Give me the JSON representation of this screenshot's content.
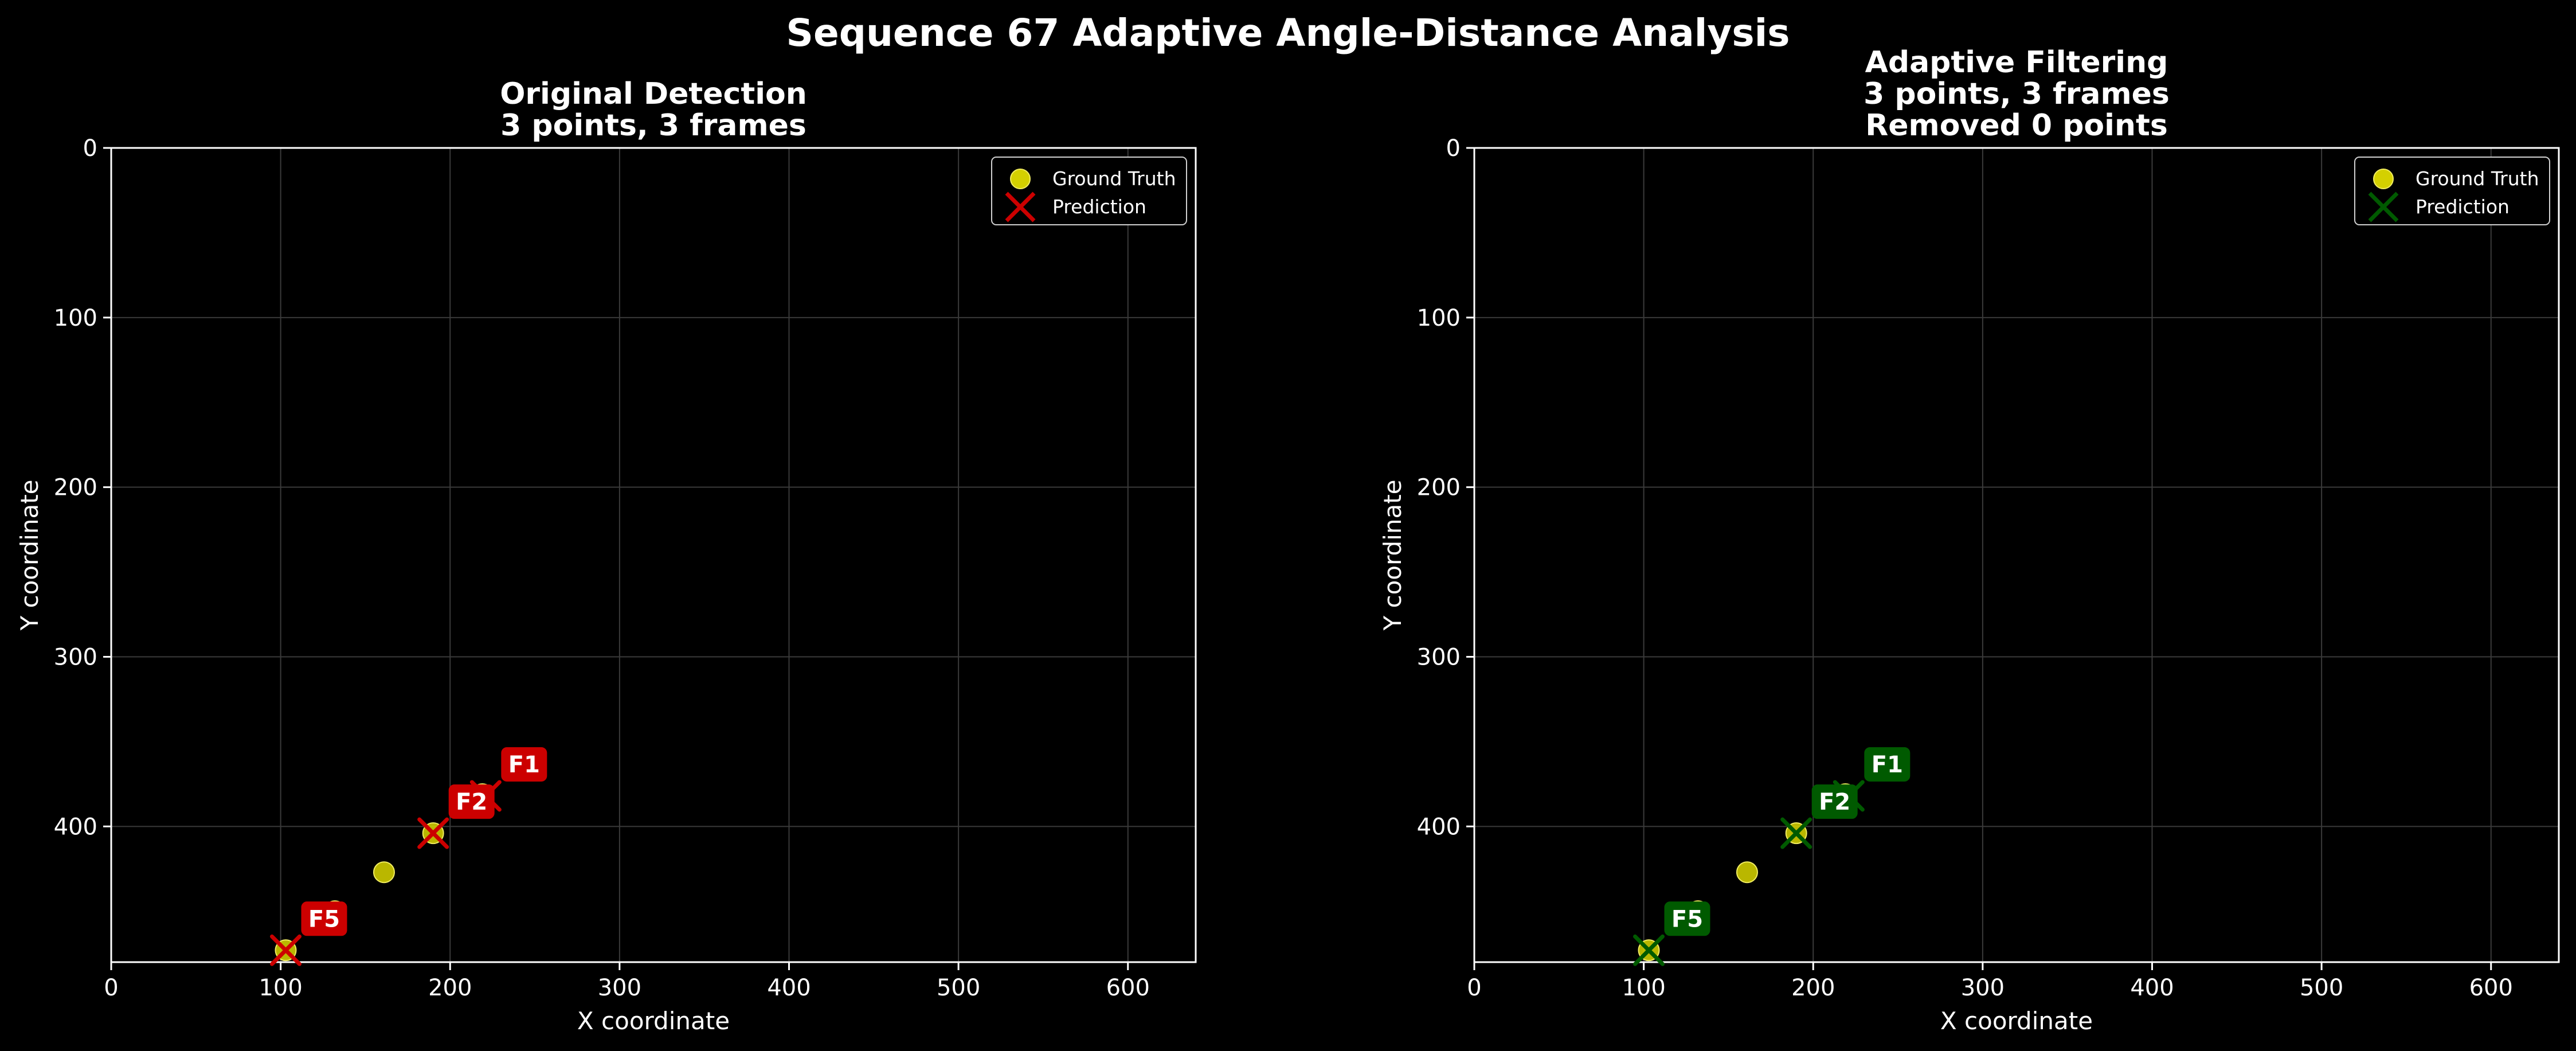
{
  "figure": {
    "suptitle": "Sequence 67 Adaptive Angle-Distance Analysis",
    "background": "#000000",
    "gt_color": "#d4d000",
    "grid": true
  },
  "chart_data": [
    {
      "type": "scatter",
      "title_lines": [
        "Original Detection",
        "3 points, 3 frames"
      ],
      "xlabel": "X coordinate",
      "ylabel": "Y coordinate",
      "xlim": [
        0,
        640
      ],
      "ylim": [
        480,
        0
      ],
      "y_inverted": true,
      "xticks": [
        0,
        100,
        200,
        300,
        400,
        500,
        600
      ],
      "yticks": [
        0,
        100,
        200,
        300,
        400
      ],
      "legend_position": "top-right",
      "legend": [
        "Ground Truth",
        "Prediction"
      ],
      "prediction_color": "#cc0000",
      "ground_truth": [
        [
          219,
          381
        ],
        [
          190,
          404
        ],
        [
          161,
          427
        ],
        [
          132,
          450
        ],
        [
          103,
          473
        ]
      ],
      "predictions": [
        {
          "label": "F1",
          "x": 221,
          "y": 382
        },
        {
          "label": "F2",
          "x": 190,
          "y": 404
        },
        {
          "label": "F5",
          "x": 103,
          "y": 473
        }
      ]
    },
    {
      "type": "scatter",
      "title_lines": [
        "Adaptive Filtering",
        "3 points, 3 frames",
        "Removed 0 points"
      ],
      "xlabel": "X coordinate",
      "ylabel": "Y coordinate",
      "xlim": [
        0,
        640
      ],
      "ylim": [
        480,
        0
      ],
      "y_inverted": true,
      "xticks": [
        0,
        100,
        200,
        300,
        400,
        500,
        600
      ],
      "yticks": [
        0,
        100,
        200,
        300,
        400
      ],
      "legend_position": "top-right",
      "legend": [
        "Ground Truth",
        "Prediction"
      ],
      "prediction_color": "#005a00",
      "ground_truth": [
        [
          219,
          381
        ],
        [
          190,
          404
        ],
        [
          161,
          427
        ],
        [
          132,
          450
        ],
        [
          103,
          473
        ]
      ],
      "predictions": [
        {
          "label": "F1",
          "x": 221,
          "y": 382
        },
        {
          "label": "F2",
          "x": 190,
          "y": 404
        },
        {
          "label": "F5",
          "x": 103,
          "y": 473
        }
      ]
    }
  ]
}
